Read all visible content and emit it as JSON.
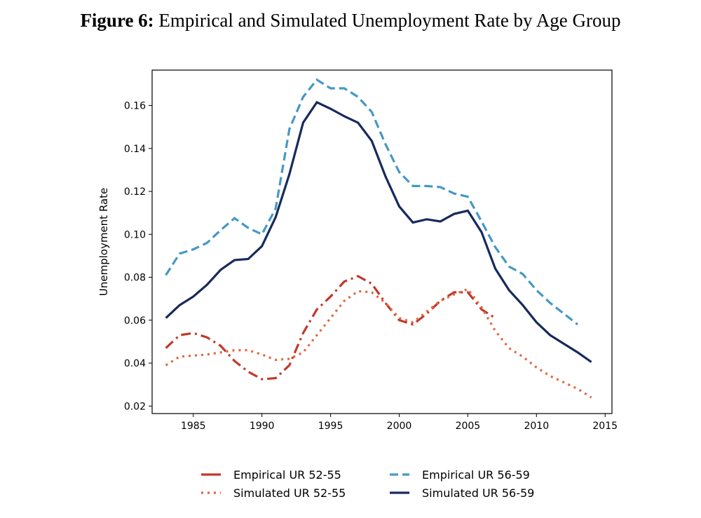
{
  "figure": {
    "label": "Figure 6:",
    "title": "Empirical and Simulated Unemployment Rate by Age Group"
  },
  "chart_data": {
    "type": "line",
    "title": "Empirical and Simulated Unemployment Rate by Age Group",
    "xlabel": "",
    "ylabel": "Unemployment Rate",
    "xlim": [
      1982,
      2015.5
    ],
    "ylim": [
      0.0165,
      0.1765
    ],
    "xticks": [
      1985,
      1990,
      1995,
      2000,
      2005,
      2010,
      2015
    ],
    "yticks": [
      0.02,
      0.04,
      0.06,
      0.08,
      0.1,
      0.12,
      0.14,
      0.16
    ],
    "ytick_labels": [
      "0.02",
      "0.04",
      "0.06",
      "0.08",
      "0.10",
      "0.12",
      "0.14",
      "0.16"
    ],
    "grid": false,
    "legend_placement": "bottom",
    "series": [
      {
        "name": "Empirical UR 52-55",
        "color": "#c0392b",
        "style": "dashdot",
        "x_start": 1983,
        "values": [
          0.047,
          0.053,
          0.054,
          0.052,
          0.048,
          0.041,
          0.036,
          0.0325,
          0.033,
          0.039,
          0.054,
          0.065,
          0.071,
          0.078,
          0.0805,
          0.077,
          0.068,
          0.06,
          0.058,
          0.063,
          0.069,
          0.073,
          0.073,
          0.065,
          0.061
        ]
      },
      {
        "name": "Simulated UR 52-55",
        "color": "#e0673f",
        "style": "dotted",
        "x_start": 1983,
        "values": [
          0.039,
          0.043,
          0.0435,
          0.044,
          0.045,
          0.046,
          0.046,
          0.044,
          0.0415,
          0.042,
          0.045,
          0.053,
          0.061,
          0.069,
          0.0735,
          0.073,
          0.068,
          0.061,
          0.059,
          0.064,
          0.069,
          0.072,
          0.0745,
          0.066,
          0.055,
          0.047,
          0.043,
          0.038,
          0.034,
          0.031,
          0.028,
          0.024
        ]
      },
      {
        "name": "Empirical UR 56-59",
        "color": "#4599c3",
        "style": "dashed",
        "x_start": 1983,
        "values": [
          0.081,
          0.091,
          0.093,
          0.096,
          0.102,
          0.1075,
          0.103,
          0.1,
          0.112,
          0.149,
          0.164,
          0.172,
          0.168,
          0.168,
          0.164,
          0.157,
          0.142,
          0.129,
          0.1225,
          0.1225,
          0.122,
          0.119,
          0.1175,
          0.106,
          0.094,
          0.085,
          0.0815,
          0.074,
          0.068,
          0.063,
          0.058
        ]
      },
      {
        "name": "Simulated UR 56-59",
        "color": "#172a5c",
        "style": "solid",
        "x_start": 1983,
        "values": [
          0.061,
          0.067,
          0.071,
          0.0765,
          0.0835,
          0.088,
          0.0885,
          0.0945,
          0.108,
          0.128,
          0.152,
          0.1615,
          0.1585,
          0.155,
          0.152,
          0.1435,
          0.127,
          0.113,
          0.1055,
          0.107,
          0.106,
          0.1095,
          0.111,
          0.101,
          0.084,
          0.074,
          0.067,
          0.059,
          0.053,
          0.049,
          0.045,
          0.0405
        ]
      }
    ]
  }
}
